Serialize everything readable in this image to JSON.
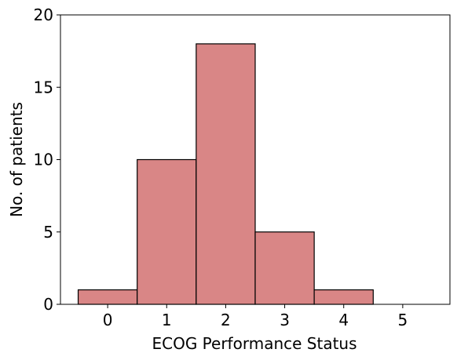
{
  "chart_data": {
    "type": "bar",
    "categories": [
      "0",
      "1",
      "2",
      "3",
      "4",
      "5"
    ],
    "values": [
      1,
      10,
      18,
      5,
      1,
      0
    ],
    "xlabel": "ECOG Performance Status",
    "ylabel": "No. of patients",
    "ylim": [
      0,
      20
    ],
    "yticks": [
      "0",
      "5",
      "10",
      "15",
      "20"
    ],
    "bar_color": "#d98686",
    "bar_edge_color": "#000000",
    "grid": false,
    "legend": "none"
  }
}
